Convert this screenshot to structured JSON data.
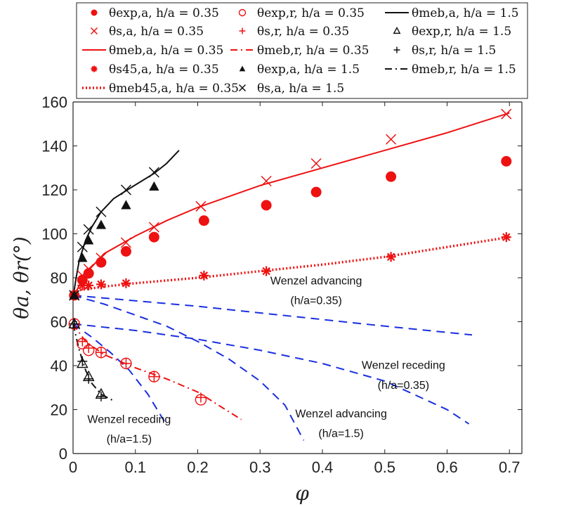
{
  "chart_data": {
    "type": "scatter",
    "title": "",
    "xlabel": "φ",
    "ylabel": "θa, θr(°)",
    "xlim": [
      0,
      0.72
    ],
    "ylim": [
      0,
      160
    ],
    "x_ticks": [
      "0",
      "0.1",
      "0.2",
      "0.3",
      "0.4",
      "0.5",
      "0.6",
      "0.7"
    ],
    "y_ticks": [
      "0",
      "20",
      "40",
      "60",
      "80",
      "100",
      "120",
      "140",
      "160"
    ],
    "grid": false,
    "legend_position": "top",
    "colors": {
      "red": "#ee1111",
      "black": "#111111",
      "blue": "#1a2fe0"
    },
    "legend": [
      "θexp,a, h/a = 0.35",
      "θexp,r, h/a = 0.35",
      "θmeb,a, h/a = 1.5",
      "θs,a, h/a = 0.35",
      "θs,r, h/a = 0.35",
      "θexp,r, h/a = 1.5",
      "θmeb,a, h/a = 0.35",
      "θmeb,r, h/a = 0.35",
      "θs,r, h/a = 1.5",
      "θs45,a, h/a = 0.35",
      "θexp,a, h/a = 1.5",
      "θmeb,r, h/a = 1.5",
      "θmeb45,a, h/a = 0.35",
      "θs,a, h/a = 1.5"
    ],
    "annotations": [
      "Wenzel advancing",
      "(h/a=0.35)",
      "Wenzel receding",
      "(h/a=0.35)",
      "Wenzel advancing",
      "(h/a=1.5)",
      "Wenzel receding",
      "(h/a=1.5)"
    ],
    "series": [
      {
        "name": "θexp,a, h/a = 0.35",
        "marker": "filled-circle",
        "color": "#ee1111",
        "x": [
          0.002,
          0.015,
          0.025,
          0.045,
          0.085,
          0.13,
          0.21,
          0.31,
          0.39,
          0.51,
          0.695
        ],
        "y": [
          72,
          79,
          82,
          87,
          92,
          98.5,
          106,
          113,
          119,
          126,
          133
        ]
      },
      {
        "name": "θexp,r, h/a = 0.35",
        "marker": "open-circle",
        "color": "#ee1111",
        "x": [
          0.002,
          0.015,
          0.025,
          0.045,
          0.085,
          0.13,
          0.205
        ],
        "y": [
          59,
          50,
          47,
          46,
          41,
          35,
          24.5
        ]
      },
      {
        "name": "θmeb,a, h/a = 1.5",
        "marker": "line-solid",
        "color": "#111111",
        "x": [
          0,
          0.005,
          0.01,
          0.02,
          0.03,
          0.045,
          0.065,
          0.09,
          0.11,
          0.13,
          0.15,
          0.17
        ],
        "y": [
          71,
          80,
          88,
          97,
          103,
          110,
          116,
          120.5,
          124,
          127.5,
          132,
          138
        ]
      },
      {
        "name": "θs,a, h/a = 0.35",
        "marker": "cross",
        "color": "#ee1111",
        "x": [
          0.002,
          0.015,
          0.025,
          0.045,
          0.085,
          0.13,
          0.205,
          0.31,
          0.39,
          0.51,
          0.695
        ],
        "y": [
          72,
          81,
          84,
          89,
          96,
          103,
          112.5,
          124,
          132,
          143,
          154.5
        ]
      },
      {
        "name": "θs,r, h/a = 0.35",
        "marker": "plus",
        "color": "#ee1111",
        "x": [
          0.002,
          0.015,
          0.025,
          0.045,
          0.085,
          0.13,
          0.205
        ],
        "y": [
          59,
          51,
          48,
          46,
          41,
          35,
          25.5
        ]
      },
      {
        "name": "θexp,r, h/a = 1.5",
        "marker": "open-triangle",
        "color": "#111111",
        "x": [
          0.002,
          0.015,
          0.025,
          0.045
        ],
        "y": [
          59,
          41,
          35,
          27
        ]
      },
      {
        "name": "θmeb,a, h/a = 0.35",
        "marker": "line-solid",
        "color": "#ee1111",
        "x": [
          0,
          0.02,
          0.05,
          0.1,
          0.15,
          0.2,
          0.3,
          0.4,
          0.5,
          0.6,
          0.7
        ],
        "y": [
          71,
          82,
          91,
          99,
          106,
          112,
          122,
          130,
          138,
          146,
          155
        ]
      },
      {
        "name": "θmeb,r, h/a = 0.35",
        "marker": "line-dashdot",
        "color": "#ee1111",
        "x": [
          0,
          0.02,
          0.05,
          0.1,
          0.15,
          0.2,
          0.25,
          0.27
        ],
        "y": [
          59,
          51,
          45,
          39,
          34,
          28,
          19,
          15.5
        ]
      },
      {
        "name": "θs,r, h/a = 1.5",
        "marker": "plus",
        "color": "#111111",
        "x": [
          0.002,
          0.015,
          0.025,
          0.045
        ],
        "y": [
          59,
          42,
          34,
          26
        ]
      },
      {
        "name": "θs45,a, h/a = 0.35",
        "marker": "asterisk",
        "color": "#ee1111",
        "x": [
          0.002,
          0.015,
          0.025,
          0.045,
          0.085,
          0.21,
          0.31,
          0.51,
          0.695
        ],
        "y": [
          72,
          76.5,
          76.5,
          77,
          77.5,
          81,
          83,
          89.5,
          98.5
        ]
      },
      {
        "name": "θexp,a, h/a = 1.5",
        "marker": "filled-triangle",
        "color": "#111111",
        "x": [
          0.002,
          0.015,
          0.025,
          0.045,
          0.085,
          0.13
        ],
        "y": [
          72,
          89,
          97,
          104,
          113,
          121.5
        ]
      },
      {
        "name": "θmeb,r, h/a = 1.5",
        "marker": "line-dashdot",
        "color": "#111111",
        "x": [
          0,
          0.01,
          0.02,
          0.03,
          0.045,
          0.065
        ],
        "y": [
          59,
          47,
          38,
          32,
          27,
          24
        ]
      },
      {
        "name": "θmeb45,a, h/a = 0.35",
        "marker": "line-dotted",
        "color": "#ee1111",
        "x": [
          0,
          0.05,
          0.1,
          0.2,
          0.3,
          0.4,
          0.5,
          0.6,
          0.7
        ],
        "y": [
          74,
          76,
          77.5,
          80,
          83,
          86,
          89.5,
          94,
          98.5
        ]
      },
      {
        "name": "θs,a, h/a = 1.5",
        "marker": "cross",
        "color": "#111111",
        "x": [
          0.002,
          0.015,
          0.025,
          0.045,
          0.085,
          0.13
        ],
        "y": [
          72,
          94,
          102,
          110,
          120,
          128
        ]
      }
    ],
    "wenzel_curves": [
      {
        "color": "#1a2fe0",
        "style": "dashed",
        "x": [
          0,
          0.1,
          0.2,
          0.3,
          0.4,
          0.5,
          0.64
        ],
        "y": [
          72,
          69.5,
          67,
          64,
          61,
          58,
          54
        ]
      },
      {
        "color": "#1a2fe0",
        "style": "dashed",
        "x": [
          0,
          0.1,
          0.2,
          0.3,
          0.4,
          0.5,
          0.6,
          0.635
        ],
        "y": [
          59,
          56,
          52,
          47,
          41,
          33,
          20,
          13.5
        ]
      },
      {
        "color": "#1a2fe0",
        "style": "dashed",
        "x": [
          0,
          0.05,
          0.1,
          0.15,
          0.2,
          0.25,
          0.3,
          0.34,
          0.37
        ],
        "y": [
          72,
          68,
          63,
          58,
          51,
          43,
          33,
          22,
          6
        ]
      },
      {
        "color": "#1a2fe0",
        "style": "dashed",
        "x": [
          0,
          0.03,
          0.06,
          0.09,
          0.12,
          0.15
        ],
        "y": [
          59,
          53,
          46,
          38,
          27,
          13
        ]
      }
    ]
  }
}
